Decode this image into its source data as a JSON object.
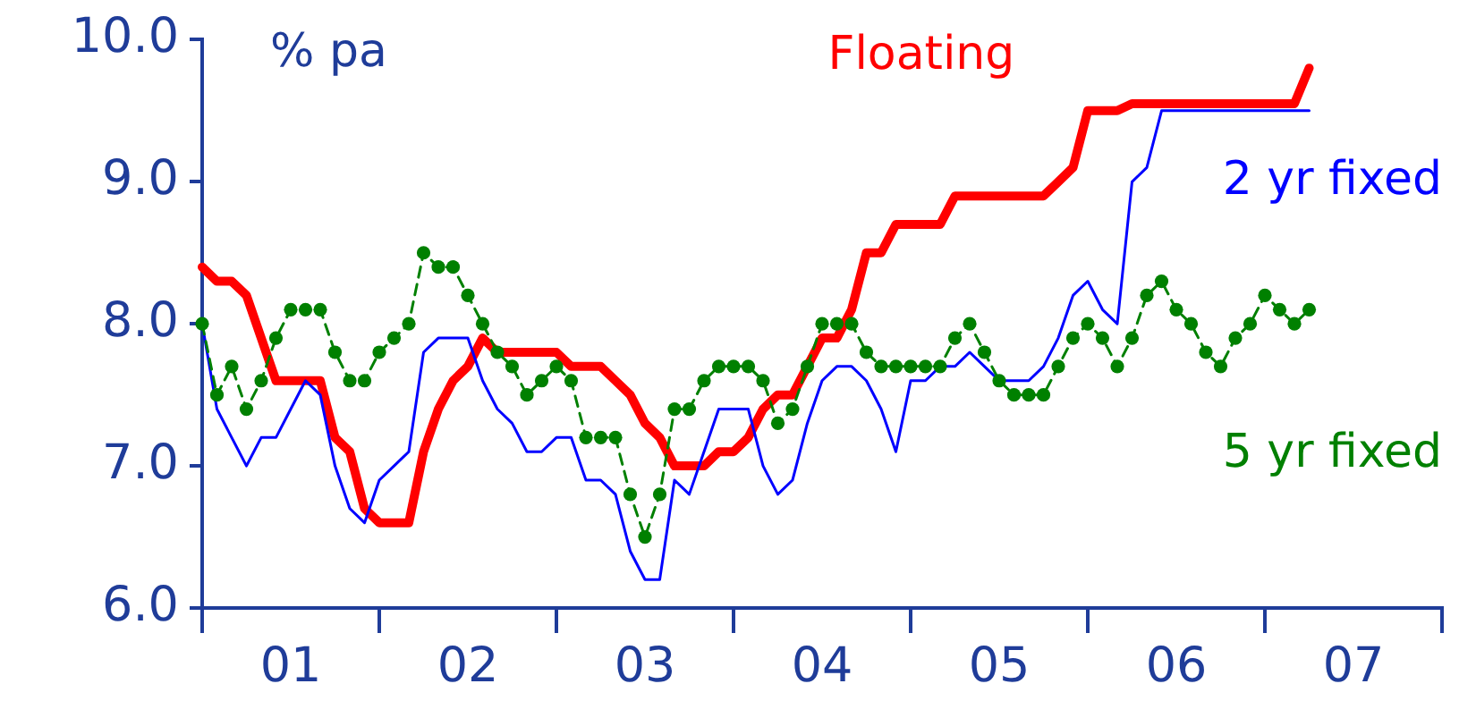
{
  "chart_data": {
    "type": "line",
    "annotations": [
      "% pa"
    ],
    "categories": [
      null,
      null,
      null,
      null,
      null,
      null,
      "01",
      null,
      null,
      null,
      null,
      null,
      null,
      null,
      null,
      null,
      null,
      null,
      "02",
      null,
      null,
      null,
      null,
      null,
      null,
      null,
      null,
      null,
      null,
      null,
      "03",
      null,
      null,
      null,
      null,
      null,
      null,
      null,
      null,
      null,
      null,
      null,
      "04",
      null,
      null,
      null,
      null,
      null,
      null,
      null,
      null,
      null,
      null,
      null,
      "05",
      null,
      null,
      null,
      null,
      null,
      null,
      null,
      null,
      null,
      null,
      null,
      "06",
      null,
      null,
      null,
      null,
      null,
      null,
      null,
      null,
      null,
      null,
      null,
      "07",
      null,
      null,
      null,
      null,
      null,
      null
    ],
    "ylim": [
      6,
      10
    ],
    "yticks": [
      {
        "value": 6,
        "label": "6.0"
      },
      {
        "value": 7,
        "label": "7.0"
      },
      {
        "value": 8,
        "label": "8.0"
      },
      {
        "value": 9,
        "label": "9.0"
      },
      {
        "value": 10,
        "label": "10.0"
      }
    ],
    "grid": false,
    "legend": false,
    "series": [
      {
        "name": "5 yr fixed",
        "color": "#008000",
        "marker": "circle",
        "line_style": "dashed",
        "values": [
          8.0,
          7.5,
          7.7,
          7.4,
          7.6,
          7.9,
          8.1,
          8.1,
          8.1,
          7.8,
          7.6,
          7.6,
          7.8,
          7.9,
          8.0,
          8.5,
          8.4,
          8.4,
          8.2,
          8.0,
          7.8,
          7.7,
          7.5,
          7.6,
          7.7,
          7.6,
          7.2,
          7.2,
          7.2,
          6.8,
          6.5,
          6.8,
          7.4,
          7.4,
          7.6,
          7.7,
          7.7,
          7.7,
          7.6,
          7.3,
          7.4,
          7.7,
          8.0,
          8.0,
          8.0,
          7.8,
          7.7,
          7.7,
          7.7,
          7.7,
          7.7,
          7.9,
          8.0,
          7.8,
          7.6,
          7.5,
          7.5,
          7.5,
          7.7,
          7.9,
          8.0,
          7.9,
          7.7,
          7.9,
          8.2,
          8.3,
          8.1,
          8.0,
          7.8,
          7.7,
          7.9,
          8.0,
          8.2,
          8.1,
          8.0,
          8.1,
          null,
          null,
          null,
          null,
          null,
          null,
          null,
          null,
          null
        ]
      },
      {
        "name": "2 yr fixed",
        "color": "#0000ff",
        "marker": "none",
        "line_style": "solid",
        "values": [
          8.0,
          7.4,
          7.2,
          7.0,
          7.2,
          7.2,
          7.4,
          7.6,
          7.5,
          7.0,
          6.7,
          6.6,
          6.9,
          7.0,
          7.1,
          7.8,
          7.9,
          7.9,
          7.9,
          7.6,
          7.4,
          7.3,
          7.1,
          7.1,
          7.2,
          7.2,
          6.9,
          6.9,
          6.8,
          6.4,
          6.2,
          6.2,
          6.9,
          6.8,
          7.1,
          7.4,
          7.4,
          7.4,
          7.0,
          6.8,
          6.9,
          7.3,
          7.6,
          7.7,
          7.7,
          7.6,
          7.4,
          7.1,
          7.6,
          7.6,
          7.7,
          7.7,
          7.8,
          7.7,
          7.6,
          7.6,
          7.6,
          7.7,
          7.9,
          8.2,
          8.3,
          8.1,
          8.0,
          9.0,
          9.1,
          9.5,
          9.5,
          9.5,
          9.5,
          9.5,
          9.5,
          9.5,
          9.5,
          9.5,
          9.5,
          9.5,
          null,
          null,
          null,
          null,
          null,
          null,
          null,
          null,
          null
        ]
      },
      {
        "name": "Floating",
        "color": "#ff0000",
        "marker": "none",
        "line_style": "solid",
        "values": [
          8.4,
          8.3,
          8.3,
          8.2,
          7.9,
          7.6,
          7.6,
          7.6,
          7.6,
          7.2,
          7.1,
          6.7,
          6.6,
          6.6,
          6.6,
          7.1,
          7.4,
          7.6,
          7.7,
          7.9,
          7.8,
          7.8,
          7.8,
          7.8,
          7.8,
          7.7,
          7.7,
          7.7,
          7.6,
          7.5,
          7.3,
          7.2,
          7.0,
          7.0,
          7.0,
          7.1,
          7.1,
          7.2,
          7.4,
          7.5,
          7.5,
          7.7,
          7.9,
          7.9,
          8.1,
          8.5,
          8.5,
          8.7,
          8.7,
          8.7,
          8.7,
          8.9,
          8.9,
          8.9,
          8.9,
          8.9,
          8.9,
          8.9,
          9.0,
          9.1,
          9.5,
          9.5,
          9.5,
          9.55,
          9.55,
          9.55,
          9.55,
          9.55,
          9.55,
          9.55,
          9.55,
          9.55,
          9.55,
          9.55,
          9.55,
          9.8,
          null,
          null,
          null,
          null,
          null,
          null,
          null,
          null,
          null
        ]
      }
    ]
  }
}
